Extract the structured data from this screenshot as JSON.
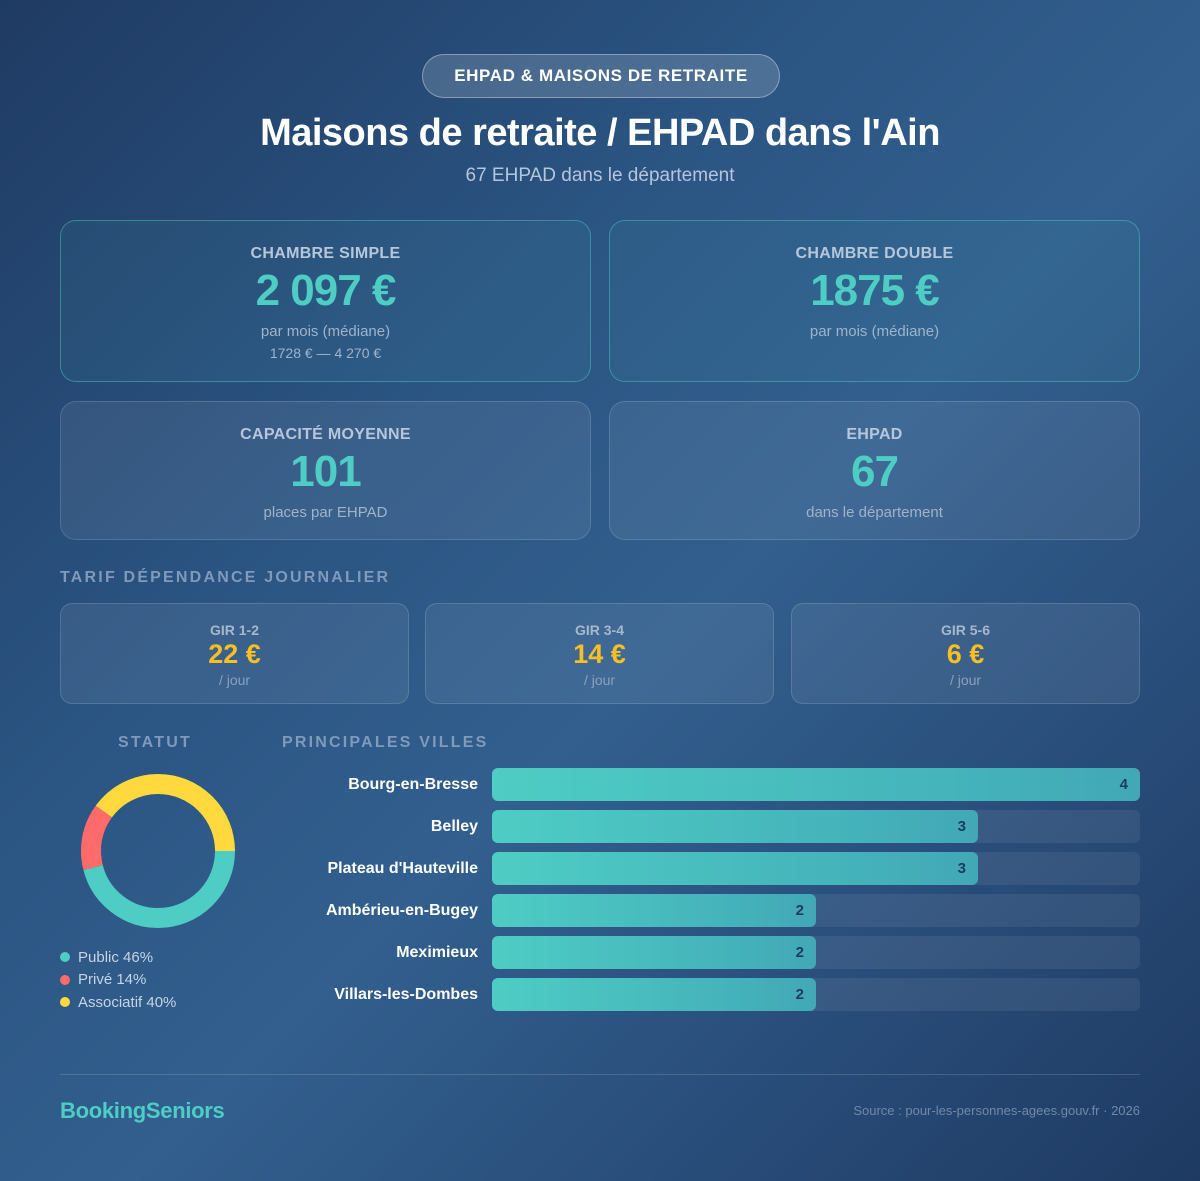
{
  "header": {
    "badge": "EHPAD & MAISONS DE RETRAITE",
    "title": "Maisons de retraite / EHPAD dans l'Ain",
    "subtitle": "67 EHPAD dans le département"
  },
  "stats": [
    {
      "label": "CHAMBRE SIMPLE",
      "value": "2 097 €",
      "sub": "par mois (médiane)",
      "range": "1728 € — 4 270 €"
    },
    {
      "label": "CHAMBRE DOUBLE",
      "value": "1875 €",
      "sub": "par mois (médiane)"
    },
    {
      "label": "CAPACITÉ MOYENNE",
      "value": "101",
      "sub": "places par EHPAD"
    },
    {
      "label": "EHPAD",
      "value": "67",
      "sub": "dans le département"
    }
  ],
  "dependance": {
    "title": "TARIF DÉPENDANCE JOURNALIER",
    "items": [
      {
        "label": "GIR 1-2",
        "value": "22 €",
        "unit": "/ jour"
      },
      {
        "label": "GIR 3-4",
        "value": "14 €",
        "unit": "/ jour"
      },
      {
        "label": "GIR 5-6",
        "value": "6 €",
        "unit": "/ jour"
      }
    ]
  },
  "statut": {
    "title": "STATUT",
    "legend": [
      {
        "label": "Public 46%",
        "color": "#4ecdc4"
      },
      {
        "label": "Privé 14%",
        "color": "#ff6b6b"
      },
      {
        "label": "Associatif 40%",
        "color": "#ffd93d"
      }
    ]
  },
  "villes": {
    "title": "PRINCIPALES VILLES",
    "items": [
      {
        "city": "Bourg-en-Bresse",
        "count": "4"
      },
      {
        "city": "Belley",
        "count": "3"
      },
      {
        "city": "Plateau d'Hauteville",
        "count": "3"
      },
      {
        "city": "Ambérieu-en-Bugey",
        "count": "2"
      },
      {
        "city": "Meximieux",
        "count": "2"
      },
      {
        "city": "Villars-les-Dombes",
        "count": "2"
      }
    ]
  },
  "footer": {
    "brand": "BookingSeniors",
    "source": "Source : pour-les-personnes-agees.gouv.fr · 2026"
  },
  "colors": {
    "accent": "#4ecdc4",
    "gold": "#fbbf24",
    "public": "#4ecdc4",
    "prive": "#ff6b6b",
    "associatif": "#ffd93d"
  },
  "chart_data": [
    {
      "type": "pie",
      "title": "STATUT",
      "categories": [
        "Public",
        "Privé",
        "Associatif"
      ],
      "values": [
        46,
        14,
        40
      ],
      "colors": [
        "#4ecdc4",
        "#ff6b6b",
        "#ffd93d"
      ],
      "donut": true,
      "legend_position": "bottom"
    },
    {
      "type": "bar",
      "orientation": "horizontal",
      "title": "PRINCIPALES VILLES",
      "categories": [
        "Bourg-en-Bresse",
        "Belley",
        "Plateau d'Hauteville",
        "Ambérieu-en-Bugey",
        "Meximieux",
        "Villars-les-Dombes"
      ],
      "values": [
        4,
        3,
        3,
        2,
        2,
        2
      ],
      "xlim": [
        0,
        4
      ],
      "grid": false
    }
  ]
}
